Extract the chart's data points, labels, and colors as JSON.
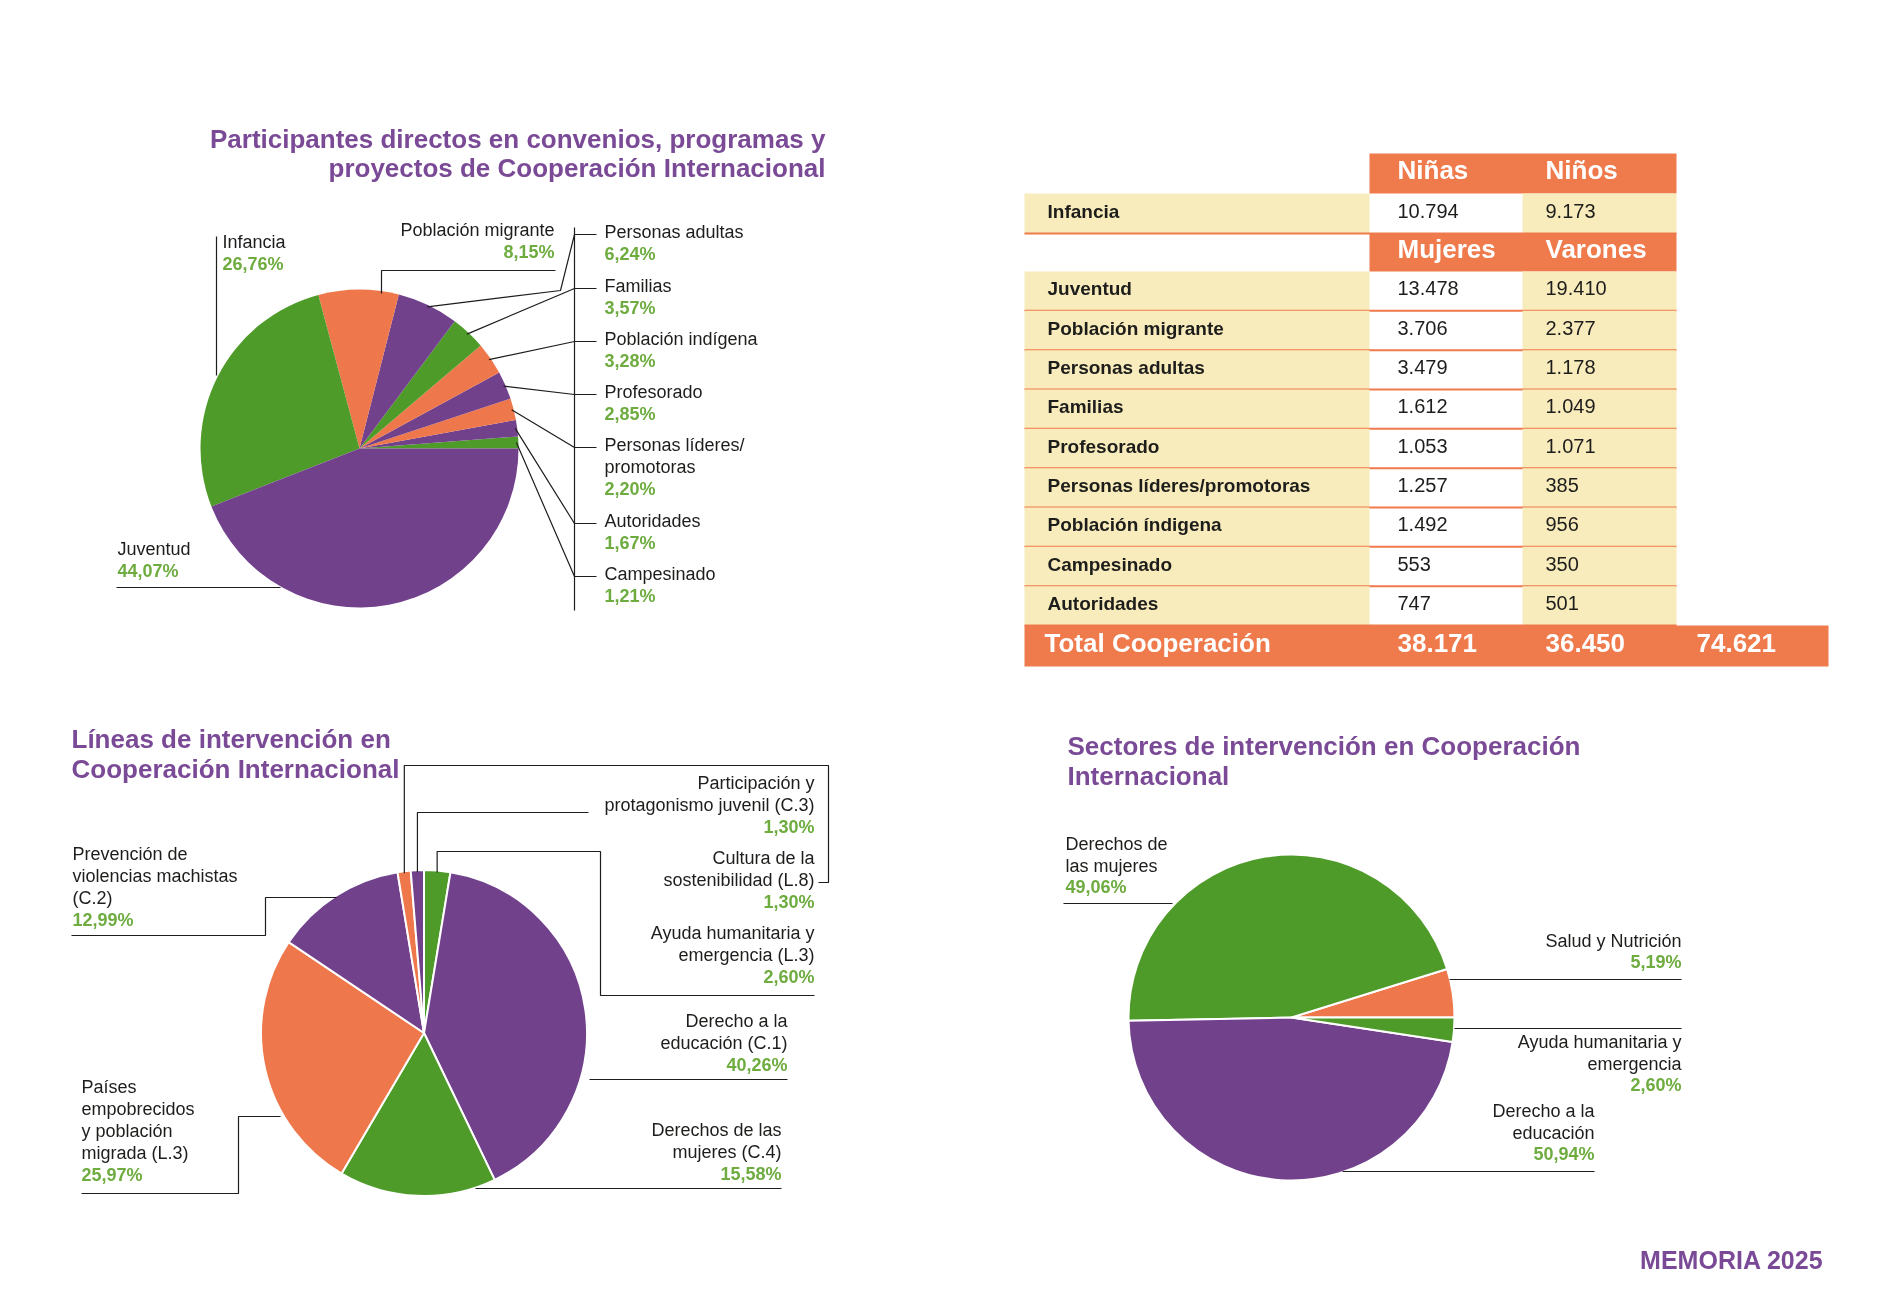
{
  "chart_data": [
    {
      "type": "pie",
      "title": "Participantes directos en convenios, programas y\nproyectos de Cooperación Internacional",
      "categories": [
        "Campesinado",
        "Autoridades",
        "Personas líderes/\npromotoras",
        "Profesorado",
        "Población indígena",
        "Familias",
        "Personas adultas",
        "Población migrante",
        "Infancia",
        "Juventud"
      ],
      "values": [
        1.21,
        1.67,
        2.2,
        2.85,
        3.28,
        3.57,
        6.24,
        8.15,
        26.76,
        44.07
      ],
      "colors": [
        "#4f9b2a",
        "#71418c",
        "#ee784b",
        "#71418c",
        "#ee784b",
        "#4f9b2a",
        "#71418c",
        "#ee784b",
        "#4f9b2a",
        "#71418c"
      ],
      "value_labels": [
        "1,21%",
        "1,67%",
        "2,20%",
        "2,85%",
        "3,28%",
        "3,57%",
        "6,24%",
        "8,15%",
        "26,76%",
        "44,07%"
      ]
    },
    {
      "type": "other",
      "annotations": [
        "Niñas",
        "Niños",
        "Infancia",
        "10.794",
        "9.173",
        "Mujeres",
        "Varones",
        "Juventud",
        "13.478",
        "19.410",
        "Población migrante",
        "3.706",
        "2.377",
        "Personas adultas",
        "3.479",
        "1.178",
        "Familias",
        "1.612",
        "1.049",
        "Profesorado",
        "1.053",
        "1.071",
        "Personas líderes/promotoras",
        "1.257",
        "385",
        "Población índigena",
        "1.492",
        "956",
        "Campesinado",
        "553",
        "350",
        "Autoridades",
        "747",
        "501",
        "Total Cooperación",
        "38.171",
        "36.450",
        "74.621"
      ]
    },
    {
      "type": "pie",
      "title": "Líneas de intervención en\nCooperación Internacional",
      "categories": [
        "Ayuda humanitaria y\nemergencia (L.3)",
        "Derecho a la\neducación (C.1)",
        "Derechos de las\nmujeres (C.4)",
        "Países\nempobrecidos\ny población\nmigrada (L.3)",
        "Prevención de\nviolencias machistas\n(C.2)",
        "Cultura de la\nsostenibilidad (L.8)",
        "Participación y\nprotagonismo juvenil (C.3)"
      ],
      "values": [
        2.6,
        40.26,
        15.58,
        25.97,
        12.99,
        1.3,
        1.3
      ],
      "colors": [
        "#4f9b2a",
        "#71418c",
        "#4f9b2a",
        "#ee784b",
        "#71418c",
        "#ee784b",
        "#71418c"
      ],
      "value_labels": [
        "2,60%",
        "40,26%",
        "15,58%",
        "25,97%",
        "12,99%",
        "1,30%",
        "1,30%"
      ]
    },
    {
      "type": "pie",
      "title": "Sectores de intervención en Cooperación\nInternacional",
      "categories": [
        "Salud y Nutrición",
        "Derechos de\nlas mujeres",
        "Derecho a la\neducación",
        "Ayuda humanitaria y\nemergencia"
      ],
      "values": [
        5.19,
        49.06,
        50.94,
        2.6
      ],
      "colors": [
        "#ee784b",
        "#4f9b2a",
        "#71418c",
        "#4f9b2a"
      ],
      "value_labels": [
        "5,19%",
        "49,06%",
        "50,94%",
        "2,60%"
      ],
      "annotations": [
        "MEMORIA 2025"
      ]
    }
  ]
}
